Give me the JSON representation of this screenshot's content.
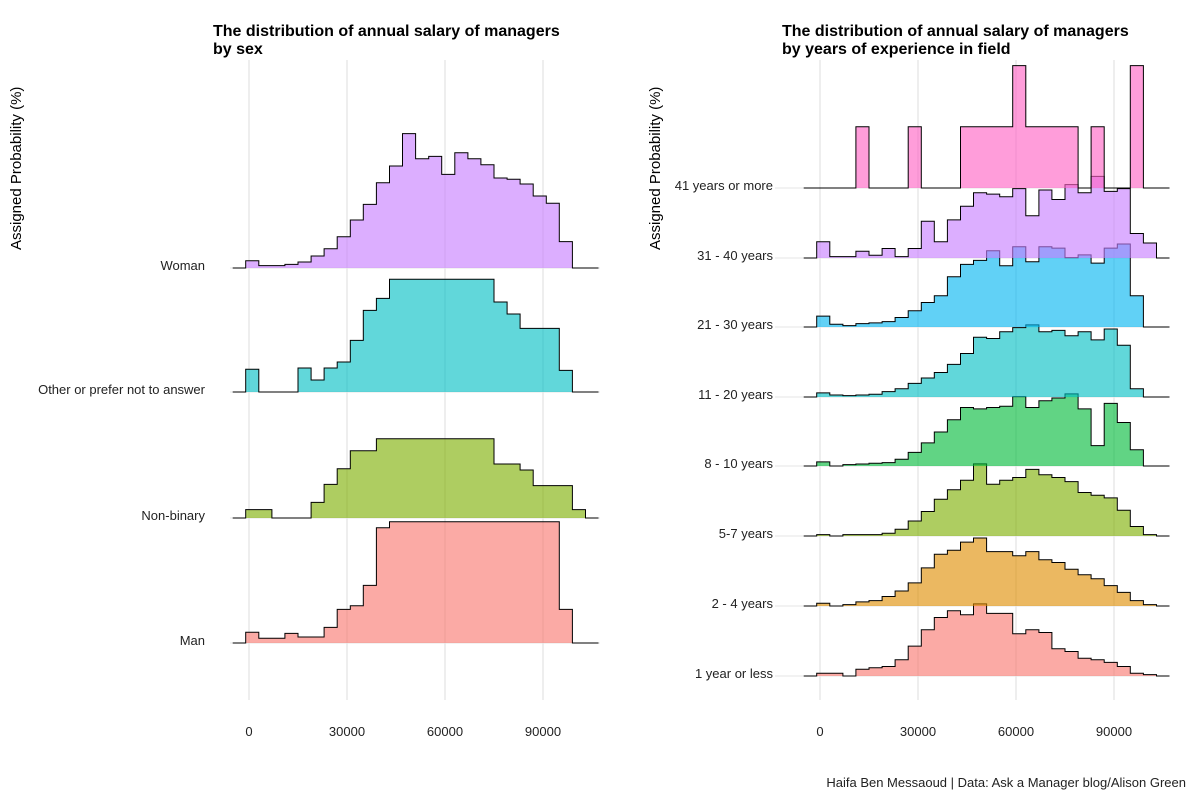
{
  "caption": "Haifa Ben Messaoud | Data: Ask a Manager blog/Alison Green",
  "chart_data": [
    {
      "type": "area",
      "title": "The distribution of annual salary of managers\n by sex",
      "xlabel": "",
      "ylabel": "Assigned Probability (%)",
      "xticks": [
        0,
        30000,
        60000,
        90000
      ],
      "xlim": [
        -6000,
        108000
      ],
      "grid": true,
      "legend": "none",
      "x": [
        -3000,
        1000,
        5000,
        9000,
        13000,
        17000,
        21000,
        25000,
        29000,
        33000,
        37000,
        41000,
        45000,
        49000,
        53000,
        57000,
        61000,
        65000,
        69000,
        73000,
        77000,
        81000,
        85000,
        89000,
        93000,
        97000,
        101000,
        105000
      ],
      "series": [
        {
          "name": "Man",
          "color": "#F8766D",
          "values": [
            0,
            0.9,
            0.4,
            0.4,
            0.8,
            0.5,
            0.5,
            1.3,
            2.8,
            3.1,
            4.8,
            9.6,
            10.1,
            10.1,
            10.1,
            10.1,
            10.1,
            10.1,
            10.1,
            10.1,
            10.1,
            10.1,
            10.1,
            10.1,
            10.1,
            2.8,
            0,
            0
          ]
        },
        {
          "name": "Non-binary",
          "color": "#7CAE00",
          "values": [
            0,
            0.7,
            0.7,
            0,
            0,
            0,
            1.3,
            2.8,
            4.1,
            5.6,
            5.6,
            6.6,
            6.6,
            6.6,
            6.6,
            6.6,
            6.6,
            6.6,
            6.6,
            6.6,
            4.5,
            4.5,
            4.0,
            2.7,
            2.7,
            2.7,
            0.7,
            0
          ]
        },
        {
          "name": "Other or prefer not to answer",
          "color": "#00BFC4",
          "values": [
            0,
            1.9,
            0,
            0,
            0,
            2.0,
            1.0,
            2.0,
            2.5,
            4.3,
            6.8,
            7.8,
            9.4,
            9.4,
            9.4,
            9.4,
            9.4,
            9.4,
            9.4,
            9.4,
            7.5,
            6.5,
            5.3,
            5.3,
            5.3,
            1.8,
            0,
            0
          ]
        },
        {
          "name": "Woman",
          "color": "#C77CFF",
          "values": [
            0,
            0.6,
            0.2,
            0.2,
            0.3,
            0.5,
            1.0,
            1.6,
            2.6,
            4.0,
            5.3,
            7.1,
            8.5,
            11.2,
            9.1,
            9.3,
            7.8,
            9.6,
            9.1,
            8.6,
            7.5,
            7.4,
            7.0,
            6.0,
            5.4,
            2.2,
            0,
            0
          ]
        }
      ]
    },
    {
      "type": "area",
      "title": "The distribution of annual salary of managers\n by years of experience in field",
      "xlabel": "",
      "ylabel": "Assigned Probability (%)",
      "xticks": [
        0,
        30000,
        60000,
        90000
      ],
      "xlim": [
        -6000,
        108000
      ],
      "grid": true,
      "legend": "none",
      "x": [
        -3000,
        1000,
        5000,
        9000,
        13000,
        17000,
        21000,
        25000,
        29000,
        33000,
        37000,
        41000,
        45000,
        49000,
        53000,
        57000,
        61000,
        65000,
        69000,
        73000,
        77000,
        81000,
        85000,
        89000,
        93000,
        97000,
        101000,
        105000
      ],
      "series": [
        {
          "name": "1 year or less",
          "color": "#F8766D",
          "values": [
            0,
            0.4,
            0.4,
            0,
            1.0,
            1.2,
            1.4,
            2.4,
            4.4,
            6.8,
            8.6,
            9.6,
            9.0,
            10.6,
            9.2,
            9.2,
            6.2,
            6.8,
            6.4,
            4.0,
            3.6,
            2.6,
            2.4,
            2.0,
            1.4,
            0.4,
            0.2,
            0
          ]
        },
        {
          "name": "2 - 4 years",
          "color": "#DE8C00",
          "values": [
            0,
            0.4,
            0,
            0.2,
            0.6,
            0.8,
            1.4,
            2.2,
            3.4,
            5.6,
            7.6,
            8.2,
            9.4,
            10.0,
            8.0,
            8.0,
            7.4,
            8.0,
            6.8,
            6.4,
            5.4,
            4.6,
            4.0,
            3.0,
            2.0,
            0.8,
            0.2,
            0
          ]
        },
        {
          "name": "5-7 years",
          "color": "#7CAE00",
          "values": [
            0,
            0.2,
            0,
            0.2,
            0.2,
            0.2,
            0.4,
            1.0,
            2.2,
            3.6,
            5.4,
            6.8,
            8.2,
            10.6,
            7.6,
            8.2,
            8.6,
            9.8,
            9.0,
            8.6,
            8.0,
            6.4,
            6.0,
            5.6,
            3.8,
            1.4,
            0.2,
            0
          ]
        },
        {
          "name": "8 - 10 years",
          "color": "#00BA38",
          "values": [
            0,
            0.6,
            0,
            0.2,
            0.3,
            0.4,
            0.5,
            1.0,
            2.0,
            3.4,
            5.0,
            6.8,
            8.6,
            8.4,
            8.6,
            8.8,
            10.2,
            8.6,
            9.6,
            10.0,
            10.6,
            8.4,
            3.0,
            9.2,
            6.4,
            2.4,
            0,
            0
          ]
        },
        {
          "name": "11 - 20 years",
          "color": "#00BFC4",
          "values": [
            0,
            0.6,
            0.3,
            0.2,
            0.3,
            0.4,
            0.8,
            1.2,
            2.0,
            2.8,
            3.6,
            4.8,
            6.4,
            8.8,
            8.6,
            9.6,
            10.2,
            10.6,
            9.6,
            9.8,
            9.0,
            9.6,
            8.4,
            10.0,
            7.6,
            1.2,
            0,
            0
          ]
        },
        {
          "name": "21 - 30 years",
          "color": "#00B4F0",
          "values": [
            0,
            1.6,
            0.4,
            0.2,
            0.5,
            0.6,
            0.8,
            1.4,
            2.4,
            3.6,
            4.6,
            7.4,
            9.2,
            9.8,
            11.2,
            9.0,
            11.8,
            9.6,
            11.8,
            11.6,
            10.2,
            10.6,
            9.4,
            11.6,
            12.2,
            4.6,
            0,
            0
          ]
        },
        {
          "name": "31 - 40 years",
          "color": "#C77CFF",
          "values": [
            0,
            2.4,
            0.2,
            0.2,
            1.0,
            0.4,
            1.4,
            0.2,
            1.4,
            5.4,
            2.4,
            5.6,
            7.6,
            9.6,
            9.4,
            9.0,
            10.2,
            6.2,
            10.0,
            8.6,
            10.8,
            9.6,
            12.0,
            9.8,
            10.2,
            3.6,
            2.2,
            0
          ]
        },
        {
          "name": "41 years or more",
          "color": "#FF61C3",
          "values": [
            0,
            0,
            0,
            0,
            9.0,
            0,
            0,
            0,
            9.0,
            0,
            0,
            0,
            9.0,
            9.0,
            9.0,
            9.0,
            18.0,
            9.0,
            9.0,
            9.0,
            9.0,
            0,
            9.0,
            0,
            0,
            18.0,
            0,
            0
          ]
        }
      ]
    }
  ]
}
